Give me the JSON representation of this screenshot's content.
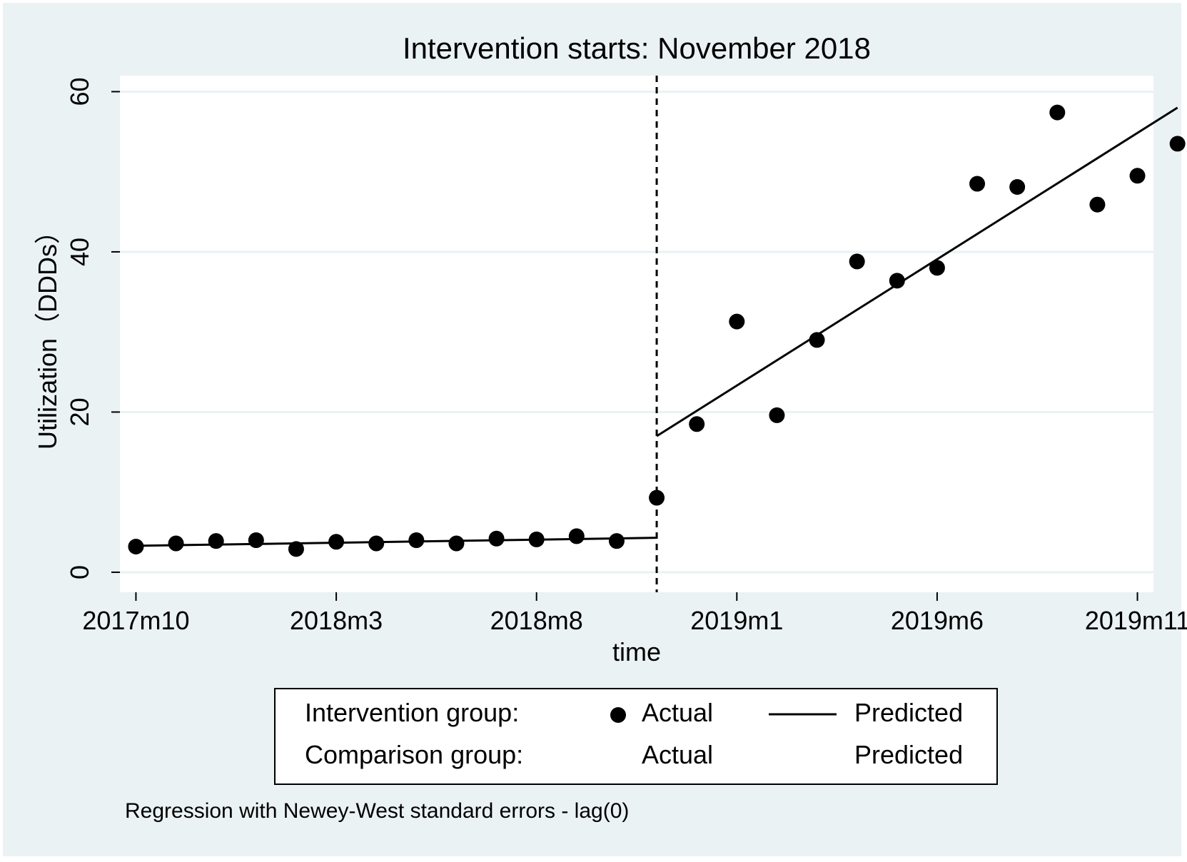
{
  "chart_data": {
    "type": "scatter",
    "title": "Intervention starts: November 2018",
    "xlabel": "time",
    "ylabel": "Utilization（DDDs）",
    "x_ticks": [
      "2017m10",
      "2018m3",
      "2018m8",
      "2019m1",
      "2019m6",
      "2019m11"
    ],
    "y_ticks": [
      "0",
      "20",
      "40",
      "60"
    ],
    "ylim": [
      -2.5,
      62
    ],
    "xlim": [
      "2017m9.6",
      "2019m11.4"
    ],
    "grid": true,
    "intervention": "2018m11",
    "x": [
      "2017m10",
      "2017m11",
      "2017m12",
      "2018m1",
      "2018m2",
      "2018m3",
      "2018m4",
      "2018m5",
      "2018m6",
      "2018m7",
      "2018m8",
      "2018m9",
      "2018m10",
      "2018m11",
      "2018m12",
      "2019m1",
      "2019m2",
      "2019m3",
      "2019m4",
      "2019m5",
      "2019m6",
      "2019m7",
      "2019m8",
      "2019m9",
      "2019m10",
      "2019m11",
      "2019m12"
    ],
    "series": [
      {
        "name": "Actual",
        "marker": "circle",
        "values": [
          3.2,
          3.6,
          3.9,
          4.0,
          2.9,
          3.8,
          3.6,
          4.0,
          3.6,
          4.2,
          4.1,
          4.5,
          3.9,
          9.3,
          18.5,
          31.3,
          19.6,
          29.0,
          38.8,
          36.4,
          38.0,
          48.5,
          48.1,
          57.4,
          45.9,
          49.5,
          53.5
        ]
      },
      {
        "name": "Predicted",
        "marker": "line",
        "segments": [
          {
            "x": [
              "2017m10",
              "2018m11"
            ],
            "values": [
              3.3,
              4.3
            ]
          },
          {
            "x": [
              "2018m11",
              "2019m12"
            ],
            "values": [
              17.0,
              58.0
            ]
          }
        ]
      }
    ],
    "legend": {
      "placement": "bottom",
      "rows": [
        {
          "group": "Intervention group:",
          "actual": "Actual",
          "predicted": "Predicted"
        },
        {
          "group": "Comparison group:",
          "actual": "Actual",
          "predicted": "Predicted"
        }
      ]
    },
    "note": "Regression with Newey-West standard errors - lag(0)",
    "colors": {
      "background": "#eaf2f3",
      "plot": "#ffffff",
      "grid": "#eaf2f3",
      "marks": "#000000"
    }
  }
}
